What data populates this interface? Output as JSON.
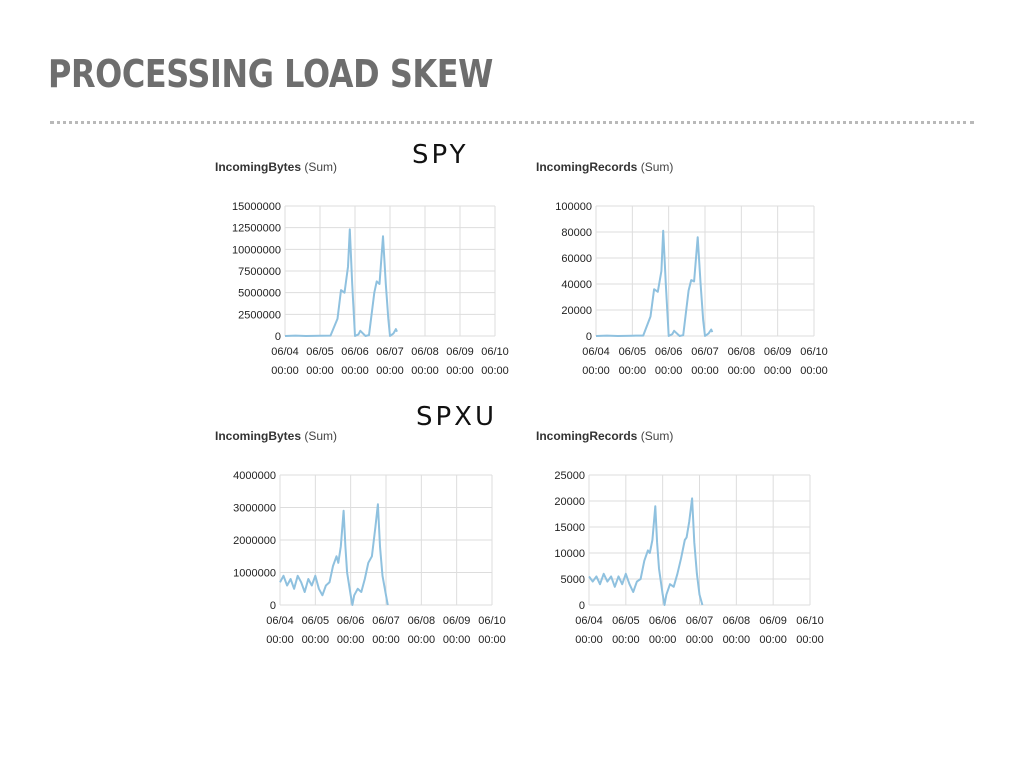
{
  "slide": {
    "title": "PROCESSING LOAD SKEW"
  },
  "groups": [
    {
      "label": "SPY"
    },
    {
      "label": "SPXU"
    }
  ],
  "colors": {
    "line": "#8fc1df",
    "grid": "#dddddd",
    "tick_text": "#222222"
  },
  "chart_data": [
    {
      "type": "line",
      "metric": "IncomingBytes",
      "stat": " (Sum)",
      "ylim": [
        0,
        15000000
      ],
      "yticks": [
        "0",
        "2500000",
        "5000000",
        "7500000",
        "10000000",
        "12500000",
        "15000000"
      ],
      "xlim": [
        0,
        6
      ],
      "xticks_date": [
        "06/04",
        "06/05",
        "06/06",
        "06/07",
        "06/08",
        "06/09",
        "06/10"
      ],
      "xticks_time": [
        "00:00",
        "00:00",
        "00:00",
        "00:00",
        "00:00",
        "00:00",
        "00:00"
      ],
      "series": [
        {
          "points": [
            [
              0,
              0
            ],
            [
              0.3,
              50000
            ],
            [
              0.6,
              0
            ],
            [
              1,
              30000
            ],
            [
              1.3,
              50000
            ],
            [
              1.5,
              2000000
            ],
            [
              1.6,
              5300000
            ],
            [
              1.7,
              5000000
            ],
            [
              1.8,
              8000000
            ],
            [
              1.85,
              12300000
            ],
            [
              1.92,
              6000000
            ],
            [
              2.0,
              0
            ],
            [
              2.1,
              200000
            ],
            [
              2.15,
              600000
            ],
            [
              2.3,
              0
            ],
            [
              2.4,
              100000
            ],
            [
              2.55,
              5000000
            ],
            [
              2.62,
              6300000
            ],
            [
              2.7,
              6000000
            ],
            [
              2.8,
              11500000
            ],
            [
              2.88,
              6000000
            ],
            [
              2.95,
              2000000
            ],
            [
              3.0,
              0
            ],
            [
              3.1,
              300000
            ],
            [
              3.17,
              800000
            ],
            [
              3.2,
              500000
            ]
          ]
        }
      ]
    },
    {
      "type": "line",
      "metric": "IncomingRecords",
      "stat": " (Sum)",
      "ylim": [
        0,
        100000
      ],
      "yticks": [
        "0",
        "20000",
        "40000",
        "60000",
        "80000",
        "100000"
      ],
      "xlim": [
        0,
        6
      ],
      "xticks_date": [
        "06/04",
        "06/05",
        "06/06",
        "06/07",
        "06/08",
        "06/09",
        "06/10"
      ],
      "xticks_time": [
        "00:00",
        "00:00",
        "00:00",
        "00:00",
        "00:00",
        "00:00",
        "00:00"
      ],
      "series": [
        {
          "points": [
            [
              0,
              0
            ],
            [
              0.3,
              300
            ],
            [
              0.6,
              0
            ],
            [
              1,
              200
            ],
            [
              1.3,
              300
            ],
            [
              1.5,
              15000
            ],
            [
              1.6,
              36000
            ],
            [
              1.7,
              34000
            ],
            [
              1.8,
              50000
            ],
            [
              1.85,
              81000
            ],
            [
              1.92,
              40000
            ],
            [
              2.0,
              0
            ],
            [
              2.1,
              1500
            ],
            [
              2.15,
              4000
            ],
            [
              2.3,
              0
            ],
            [
              2.4,
              600
            ],
            [
              2.55,
              35000
            ],
            [
              2.62,
              43000
            ],
            [
              2.7,
              42000
            ],
            [
              2.8,
              76000
            ],
            [
              2.88,
              40000
            ],
            [
              2.95,
              12000
            ],
            [
              3.0,
              0
            ],
            [
              3.1,
              2000
            ],
            [
              3.17,
              5000
            ],
            [
              3.2,
              3000
            ]
          ]
        }
      ]
    },
    {
      "type": "line",
      "metric": "IncomingBytes",
      "stat": " (Sum)",
      "ylim": [
        0,
        4000000
      ],
      "yticks": [
        "0",
        "1000000",
        "2000000",
        "3000000",
        "4000000"
      ],
      "xlim": [
        0,
        6
      ],
      "xticks_date": [
        "06/04",
        "06/05",
        "06/06",
        "06/07",
        "06/08",
        "06/09",
        "06/10"
      ],
      "xticks_time": [
        "00:00",
        "00:00",
        "00:00",
        "00:00",
        "00:00",
        "00:00",
        "00:00"
      ],
      "series": [
        {
          "points": [
            [
              0,
              700000
            ],
            [
              0.1,
              900000
            ],
            [
              0.2,
              600000
            ],
            [
              0.3,
              800000
            ],
            [
              0.4,
              500000
            ],
            [
              0.5,
              900000
            ],
            [
              0.6,
              700000
            ],
            [
              0.7,
              400000
            ],
            [
              0.8,
              800000
            ],
            [
              0.9,
              600000
            ],
            [
              1.0,
              900000
            ],
            [
              1.1,
              500000
            ],
            [
              1.2,
              300000
            ],
            [
              1.3,
              600000
            ],
            [
              1.4,
              700000
            ],
            [
              1.5,
              1200000
            ],
            [
              1.6,
              1500000
            ],
            [
              1.65,
              1300000
            ],
            [
              1.72,
              1800000
            ],
            [
              1.8,
              2900000
            ],
            [
              1.85,
              1800000
            ],
            [
              1.9,
              1000000
            ],
            [
              2.0,
              300000
            ],
            [
              2.05,
              0
            ],
            [
              2.1,
              300000
            ],
            [
              2.2,
              500000
            ],
            [
              2.3,
              400000
            ],
            [
              2.4,
              800000
            ],
            [
              2.5,
              1300000
            ],
            [
              2.6,
              1500000
            ],
            [
              2.7,
              2400000
            ],
            [
              2.77,
              3100000
            ],
            [
              2.83,
              1800000
            ],
            [
              2.9,
              900000
            ],
            [
              3.0,
              300000
            ],
            [
              3.05,
              0
            ]
          ]
        }
      ]
    },
    {
      "type": "line",
      "metric": "IncomingRecords",
      "stat": " (Sum)",
      "ylim": [
        0,
        25000
      ],
      "yticks": [
        "0",
        "5000",
        "10000",
        "15000",
        "20000",
        "25000"
      ],
      "xlim": [
        0,
        6
      ],
      "xticks_date": [
        "06/04",
        "06/05",
        "06/06",
        "06/07",
        "06/08",
        "06/09",
        "06/10"
      ],
      "xticks_time": [
        "00:00",
        "00:00",
        "00:00",
        "00:00",
        "00:00",
        "00:00",
        "00:00"
      ],
      "series": [
        {
          "points": [
            [
              0,
              5500
            ],
            [
              0.1,
              4500
            ],
            [
              0.2,
              5500
            ],
            [
              0.3,
              4000
            ],
            [
              0.4,
              6000
            ],
            [
              0.5,
              4500
            ],
            [
              0.6,
              5500
            ],
            [
              0.7,
              3500
            ],
            [
              0.8,
              5500
            ],
            [
              0.9,
              4000
            ],
            [
              1.0,
              6000
            ],
            [
              1.1,
              4000
            ],
            [
              1.2,
              2500
            ],
            [
              1.3,
              4500
            ],
            [
              1.4,
              5000
            ],
            [
              1.5,
              8500
            ],
            [
              1.6,
              10500
            ],
            [
              1.65,
              10000
            ],
            [
              1.72,
              12500
            ],
            [
              1.8,
              19000
            ],
            [
              1.85,
              12000
            ],
            [
              1.9,
              7000
            ],
            [
              2.0,
              2000
            ],
            [
              2.05,
              0
            ],
            [
              2.1,
              2000
            ],
            [
              2.2,
              4000
            ],
            [
              2.3,
              3500
            ],
            [
              2.4,
              6000
            ],
            [
              2.5,
              9000
            ],
            [
              2.6,
              12500
            ],
            [
              2.65,
              13000
            ],
            [
              2.72,
              16000
            ],
            [
              2.8,
              20500
            ],
            [
              2.86,
              12000
            ],
            [
              2.93,
              6000
            ],
            [
              3.0,
              2000
            ],
            [
              3.08,
              0
            ]
          ]
        }
      ]
    }
  ]
}
